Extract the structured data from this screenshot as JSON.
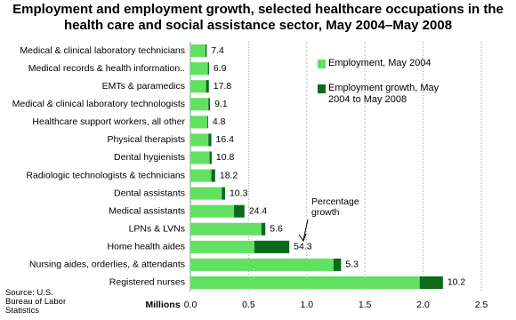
{
  "chart_data": {
    "type": "stacked_bar_horizontal",
    "title": "Employment and employment growth, selected healthcare occupations in the health care and social assistance sector, May 2004–May 2008",
    "categories": [
      "Medical & clinical laboratory technicians",
      "Medical records & health information..",
      "EMTs & paramedics",
      "Medical & clinical laboratory technologists",
      "Healthcare support workers, all other",
      "Physical therapists",
      "Dental hygienists",
      "Radiologic technologists & technicians",
      "Dental assistants",
      "Medical assistants",
      "LPNs & LVNs",
      "Home health aides",
      "Nursing aides, orderlies, & attendants",
      "Registered nurses"
    ],
    "series": [
      {
        "name": "Employment, May 2004",
        "color": "#62e062",
        "values": [
          0.13,
          0.15,
          0.135,
          0.155,
          0.145,
          0.155,
          0.165,
          0.18,
          0.27,
          0.375,
          0.61,
          0.55,
          1.23,
          1.97
        ]
      },
      {
        "name": "Employment growth, May 2004 to May 2008",
        "color": "#0b6b1b",
        "values": [
          0.01,
          0.01,
          0.024,
          0.014,
          0.007,
          0.025,
          0.018,
          0.033,
          0.028,
          0.09,
          0.034,
          0.3,
          0.065,
          0.2
        ]
      }
    ],
    "growth_percent": [
      7.4,
      6.9,
      17.8,
      9.1,
      4.8,
      16.4,
      10.8,
      18.2,
      10.3,
      24.4,
      5.6,
      54.3,
      5.3,
      10.2
    ],
    "annotation": "Percentage growth",
    "xlabel": "Millions",
    "source": "Source: U.S. Bureau of Labor Statistics",
    "xlim": [
      0,
      2.5
    ],
    "xticks": [
      {
        "value": 0,
        "label": "0.0"
      },
      0.5,
      {
        "value": 1,
        "label": "1.0"
      },
      1.5,
      {
        "value": 2,
        "label": "2.0"
      },
      2.5
    ],
    "grid": true
  }
}
